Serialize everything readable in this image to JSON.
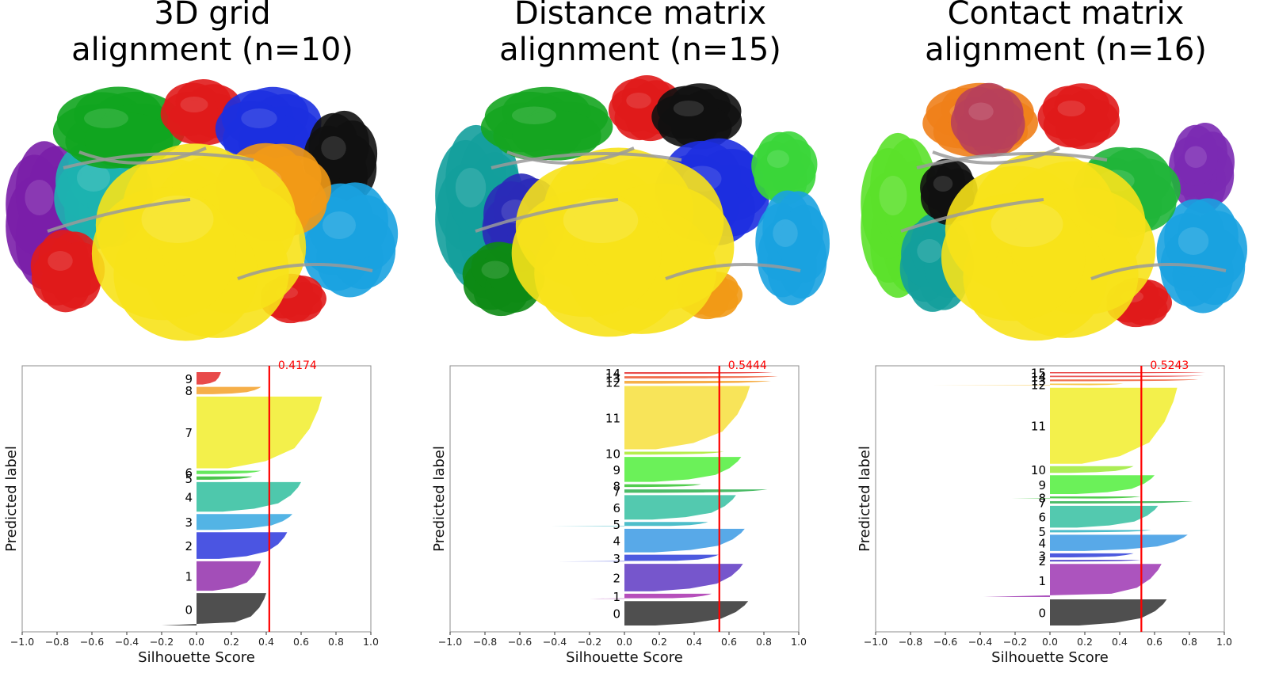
{
  "panels": [
    {
      "title_line1": "3D grid",
      "title_line2": "alignment (n=10)",
      "chart_data": {
        "type": "silhouette",
        "xlabel": "Silhouette Score",
        "ylabel": "Predicted label",
        "xlim": [
          -1.0,
          1.0
        ],
        "xticks": [
          "−1.0",
          "−0.8",
          "−0.6",
          "−0.4",
          "−0.2",
          "0.0",
          "0.2",
          "0.4",
          "0.6",
          "0.8",
          "1.0"
        ],
        "average_score": 0.4174,
        "average_label": "0.4174",
        "clusters": [
          {
            "label": "0",
            "size": 0.118,
            "max": 0.4,
            "min": -0.2,
            "color": "#404040"
          },
          {
            "label": "1",
            "size": 0.108,
            "max": 0.37,
            "min": 0.0,
            "color": "#9b3fb2"
          },
          {
            "label": "2",
            "size": 0.097,
            "max": 0.52,
            "min": 0.0,
            "color": "#3c47e0"
          },
          {
            "label": "3",
            "size": 0.058,
            "max": 0.55,
            "min": 0.0,
            "color": "#44aee3"
          },
          {
            "label": "4",
            "size": 0.108,
            "max": 0.6,
            "min": 0.0,
            "color": "#3fc3a5"
          },
          {
            "label": "5",
            "size": 0.012,
            "max": 0.32,
            "min": 0.0,
            "color": "#3bbf3b"
          },
          {
            "label": "6",
            "size": 0.012,
            "max": 0.37,
            "min": 0.0,
            "color": "#59e64f"
          },
          {
            "label": "7",
            "size": 0.262,
            "max": 0.72,
            "min": 0.0,
            "color": "#f2ef3c"
          },
          {
            "label": "8",
            "size": 0.027,
            "max": 0.37,
            "min": 0.0,
            "color": "#f5a83a"
          },
          {
            "label": "9",
            "size": 0.045,
            "max": 0.14,
            "min": 0.0,
            "color": "#e63b3b"
          }
        ]
      }
    },
    {
      "title_line1": "Distance matrix",
      "title_line2": "alignment (n=15)",
      "chart_data": {
        "type": "silhouette",
        "xlabel": "Silhouette Score",
        "ylabel": "Predicted label",
        "xlim": [
          -1.0,
          1.0
        ],
        "xticks": [
          "−1.0",
          "−0.8",
          "−0.6",
          "−0.4",
          "−0.2",
          "0.0",
          "0.2",
          "0.4",
          "0.6",
          "0.8",
          "1.0"
        ],
        "average_score": 0.5444,
        "average_label": "0.5444",
        "clusters": [
          {
            "label": "0",
            "size": 0.087,
            "max": 0.71,
            "min": 0.0,
            "color": "#404040"
          },
          {
            "label": "1",
            "size": 0.018,
            "max": 0.5,
            "min": -0.2,
            "color": "#b040b5"
          },
          {
            "label": "2",
            "size": 0.098,
            "max": 0.68,
            "min": 0.0,
            "color": "#6a48c8"
          },
          {
            "label": "3",
            "size": 0.024,
            "max": 0.54,
            "min": -0.38,
            "color": "#3e4cdc"
          },
          {
            "label": "4",
            "size": 0.084,
            "max": 0.69,
            "min": 0.0,
            "color": "#4aa2e6"
          },
          {
            "label": "5",
            "size": 0.016,
            "max": 0.48,
            "min": -0.42,
            "color": "#3fb8c6"
          },
          {
            "label": "6",
            "size": 0.087,
            "max": 0.64,
            "min": 0.0,
            "color": "#44c4a8"
          },
          {
            "label": "7",
            "size": 0.012,
            "max": 0.82,
            "min": 0.0,
            "color": "#3db65a"
          },
          {
            "label": "8",
            "size": 0.01,
            "max": 0.44,
            "min": 0.0,
            "color": "#43c93f"
          },
          {
            "label": "9",
            "size": 0.089,
            "max": 0.67,
            "min": 0.0,
            "color": "#5ef04b"
          },
          {
            "label": "10",
            "size": 0.01,
            "max": 0.57,
            "min": 0.0,
            "color": "#b0ec3d"
          },
          {
            "label": "11",
            "size": 0.226,
            "max": 0.72,
            "min": 0.0,
            "color": "#f7e24b"
          },
          {
            "label": "12",
            "size": 0.01,
            "max": 0.84,
            "min": 0.0,
            "color": "#f5a83a"
          },
          {
            "label": "13",
            "size": 0.008,
            "max": 0.88,
            "min": 0.0,
            "color": "#ef6440"
          },
          {
            "label": "14",
            "size": 0.006,
            "max": 0.85,
            "min": 0.0,
            "color": "#e63b3b"
          }
        ]
      }
    },
    {
      "title_line1": "Contact matrix",
      "title_line2": "alignment (n=16)",
      "chart_data": {
        "type": "silhouette",
        "xlabel": "Silhouette Score",
        "ylabel": "Predicted label",
        "xlim": [
          -1.0,
          1.0
        ],
        "xticks": [
          "−1.0",
          "−0.8",
          "−0.6",
          "−0.4",
          "−0.2",
          "0.0",
          "0.2",
          "0.4",
          "0.6",
          "0.8",
          "1.0"
        ],
        "average_score": 0.5243,
        "average_label": "0.5243",
        "clusters": [
          {
            "label": "0",
            "size": 0.09,
            "max": 0.67,
            "min": 0.0,
            "color": "#404040"
          },
          {
            "label": "1",
            "size": 0.114,
            "max": 0.64,
            "min": -0.38,
            "color": "#a545b8"
          },
          {
            "label": "2",
            "size": 0.006,
            "max": 0.52,
            "min": 0.0,
            "color": "#5a4ccc"
          },
          {
            "label": "3",
            "size": 0.014,
            "max": 0.48,
            "min": 0.0,
            "color": "#3e4cdc"
          },
          {
            "label": "4",
            "size": 0.056,
            "max": 0.79,
            "min": 0.0,
            "color": "#4aa2e6"
          },
          {
            "label": "5",
            "size": 0.008,
            "max": 0.58,
            "min": 0.0,
            "color": "#3fb8c6"
          },
          {
            "label": "6",
            "size": 0.075,
            "max": 0.62,
            "min": 0.0,
            "color": "#44c4a8"
          },
          {
            "label": "7",
            "size": 0.008,
            "max": 0.82,
            "min": 0.0,
            "color": "#3db65a"
          },
          {
            "label": "8",
            "size": 0.008,
            "max": 0.52,
            "min": -0.22,
            "color": "#43c93f"
          },
          {
            "label": "9",
            "size": 0.065,
            "max": 0.6,
            "min": 0.0,
            "color": "#5ef04b"
          },
          {
            "label": "10",
            "size": 0.023,
            "max": 0.48,
            "min": 0.0,
            "color": "#a5ec46"
          },
          {
            "label": "11",
            "size": 0.262,
            "max": 0.73,
            "min": 0.0,
            "color": "#f2ef3c"
          },
          {
            "label": "12",
            "size": 0.006,
            "max": 0.42,
            "min": -0.68,
            "color": "#f7c23a"
          },
          {
            "label": "13",
            "size": 0.006,
            "max": 0.85,
            "min": 0.0,
            "color": "#ef6440"
          },
          {
            "label": "14",
            "size": 0.005,
            "max": 0.88,
            "min": 0.0,
            "color": "#e84a4a"
          },
          {
            "label": "15",
            "size": 0.004,
            "max": 0.89,
            "min": 0.0,
            "color": "#e63b3b"
          }
        ]
      }
    }
  ]
}
